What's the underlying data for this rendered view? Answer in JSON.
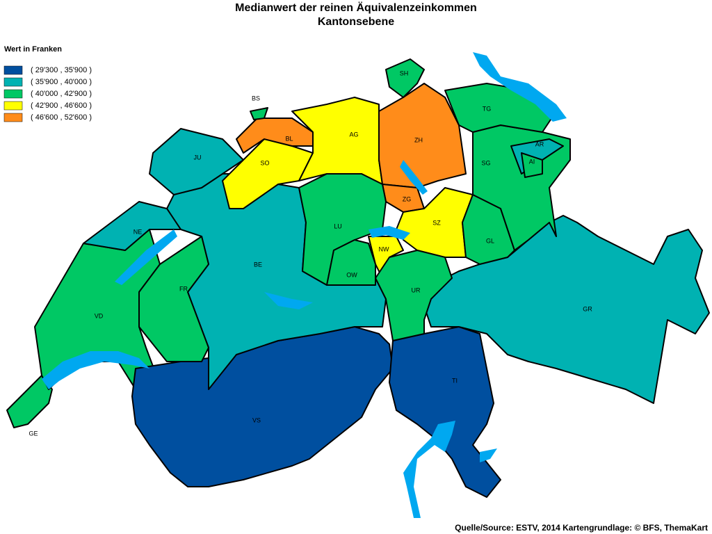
{
  "title": "Medianwert der reinen Äquivalenzeinkommen",
  "subtitle": "Kantonsebene",
  "legend": {
    "title": "Wert in Franken",
    "entries": [
      {
        "label": "( 29'300 , 35'900 )",
        "color": "#004f9f"
      },
      {
        "label": "( 35'900 , 40'000 )",
        "color": "#00b2b2"
      },
      {
        "label": "( 40'000 , 42'900 )",
        "color": "#00c864"
      },
      {
        "label": "( 42'900 , 46'600 )",
        "color": "#ffff00"
      },
      {
        "label": "( 46'600 , 52'600 )",
        "color": "#ff8c1a"
      }
    ]
  },
  "cantons": [
    {
      "label": "GE",
      "color": "#00c864"
    },
    {
      "label": "VD",
      "color": "#00c864"
    },
    {
      "label": "VS",
      "color": "#004f9f"
    },
    {
      "label": "TI",
      "color": "#004f9f"
    },
    {
      "label": "GR",
      "color": "#00b2b2"
    },
    {
      "label": "BE",
      "color": "#00b2b2"
    },
    {
      "label": "FR",
      "color": "#00c864"
    },
    {
      "label": "NE",
      "color": "#00b2b2"
    },
    {
      "label": "JU",
      "color": "#00b2b2"
    },
    {
      "label": "SO",
      "color": "#ffff00"
    },
    {
      "label": "BL",
      "color": "#ff8c1a"
    },
    {
      "label": "BS",
      "color": "#00c864"
    },
    {
      "label": "AG",
      "color": "#ffff00"
    },
    {
      "label": "ZH",
      "color": "#ff8c1a"
    },
    {
      "label": "ZG",
      "color": "#ff8c1a"
    },
    {
      "label": "LU",
      "color": "#00c864"
    },
    {
      "label": "OW",
      "color": "#00c864"
    },
    {
      "label": "NW",
      "color": "#ffff00"
    },
    {
      "label": "SZ",
      "color": "#ffff00"
    },
    {
      "label": "UR",
      "color": "#00c864"
    },
    {
      "label": "GL",
      "color": "#00c864"
    },
    {
      "label": "SG",
      "color": "#00c864"
    },
    {
      "label": "AR",
      "color": "#00b2b2"
    },
    {
      "label": "AI",
      "color": "#00c864"
    },
    {
      "label": "TG",
      "color": "#00c864"
    },
    {
      "label": "SH",
      "color": "#00c864"
    }
  ],
  "source": "Quelle/Source: ESTV, 2014 Kartengrundlage: © BFS, ThemaKart"
}
